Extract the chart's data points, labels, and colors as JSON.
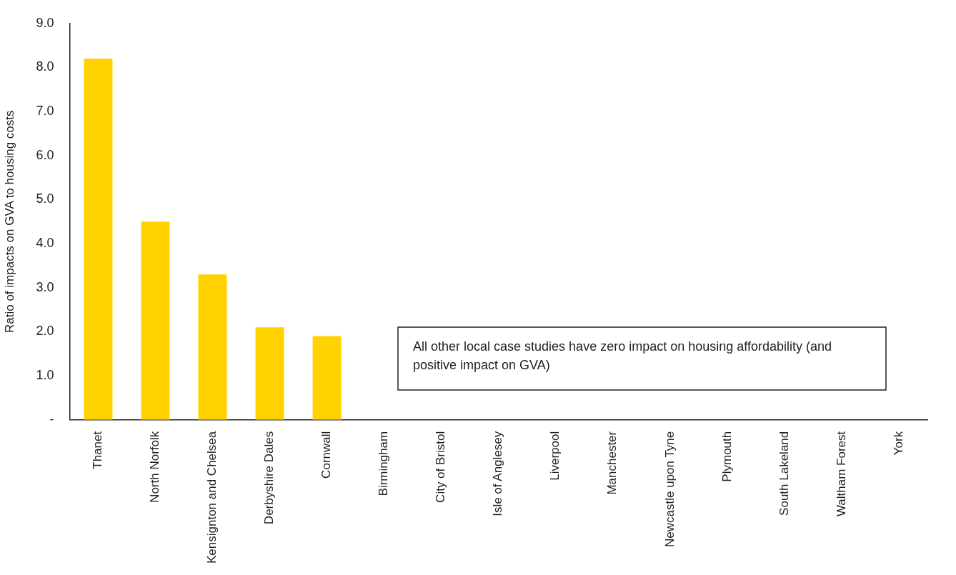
{
  "chart_data": {
    "type": "bar",
    "ylabel": "Ratio of impacts on GVA to housing costs",
    "categories": [
      "Thanet",
      "North Norfolk",
      "Kensignton and Chelsea",
      "Derbyshire Dales",
      "Cornwall",
      "Birmingham",
      "City of Bristol",
      "Isle of Anglesey",
      "Liverpool",
      "Manchester",
      "Newcastle upon Tyne",
      "Plymouth",
      "South Lakeland",
      "Waltham Forest",
      "York"
    ],
    "values": [
      8.2,
      4.5,
      3.3,
      2.1,
      1.9,
      0,
      0,
      0,
      0,
      0,
      0,
      0,
      0,
      0,
      0
    ],
    "color": "#ffd200",
    "ylim": [
      0,
      9
    ],
    "yticks": [
      {
        "value": 0,
        "label": "-"
      },
      {
        "value": 1,
        "label": "1.0"
      },
      {
        "value": 2,
        "label": "2.0"
      },
      {
        "value": 3,
        "label": "3.0"
      },
      {
        "value": 4,
        "label": "4.0"
      },
      {
        "value": 5,
        "label": "5.0"
      },
      {
        "value": 6,
        "label": "6.0"
      },
      {
        "value": 7,
        "label": "7.0"
      },
      {
        "value": 8,
        "label": "8.0"
      },
      {
        "value": 9,
        "label": "9.0"
      }
    ],
    "grid": false,
    "legend": false,
    "annotations": [
      "All other local case studies have zero impact on housing affordability (and positive impact on GVA)"
    ]
  }
}
